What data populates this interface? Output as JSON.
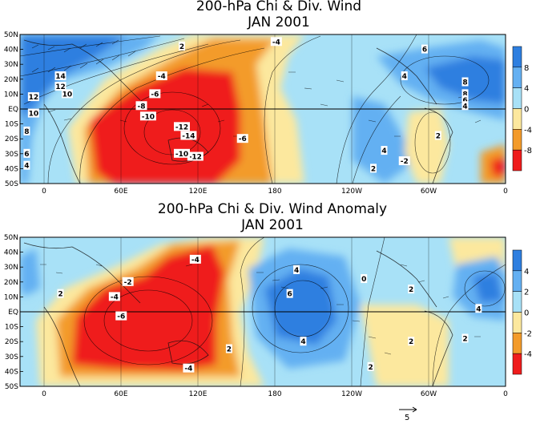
{
  "chart_data": [
    {
      "type": "heatmap",
      "title": "200-hPa Chi & Div. Wind",
      "subtitle": "JAN 2001",
      "xlim": [
        0,
        360
      ],
      "ylim": [
        -50,
        50
      ],
      "xticks": [
        "0",
        "60E",
        "120E",
        "180",
        "120W",
        "60W",
        "0"
      ],
      "yticks": [
        "50N",
        "40N",
        "30N",
        "20N",
        "10N",
        "EQ",
        "10S",
        "20S",
        "30S",
        "40S",
        "50S"
      ],
      "colorbar": {
        "ticks": [
          "8",
          "4",
          "0",
          "-4",
          "-8"
        ],
        "colors": [
          "#2e7fe0",
          "#64b0f2",
          "#a8e1f7",
          "#fce89e",
          "#f39b2a",
          "#ef1c1c"
        ]
      },
      "contour_labels": [
        "10",
        "12",
        "14",
        "12",
        "10",
        "8",
        "6",
        "4",
        "2",
        "-4",
        "-6",
        "-8",
        "-10",
        "-12",
        "-14",
        "-12",
        "-10",
        "-6",
        "-4",
        "6",
        "4",
        "8",
        "8",
        "6",
        "4",
        "2",
        "-2",
        "4",
        "2"
      ],
      "centers": [
        {
          "lon": 120,
          "lat": -15,
          "value": -14
        },
        {
          "lon": 110,
          "lat": 5,
          "value": -8
        },
        {
          "lon": 150,
          "lat": 10,
          "value": -6
        },
        {
          "lon": 150,
          "lat": -25,
          "value": -6
        },
        {
          "lon": 15,
          "lat": 25,
          "value": 14
        },
        {
          "lon": 320,
          "lat": 20,
          "value": 8
        },
        {
          "lon": 250,
          "lat": -5,
          "value": 4
        },
        {
          "lon": 315,
          "lat": -20,
          "value": -2
        }
      ]
    },
    {
      "type": "heatmap",
      "title": "200-hPa Chi & Div. Wind Anomaly",
      "subtitle": "JAN 2001",
      "xlim": [
        0,
        360
      ],
      "ylim": [
        -50,
        50
      ],
      "xticks": [
        "0",
        "60E",
        "120E",
        "180",
        "120W",
        "60W",
        "0"
      ],
      "yticks": [
        "50N",
        "40N",
        "30N",
        "20N",
        "10N",
        "EQ",
        "10S",
        "20S",
        "30S",
        "40S",
        "50S"
      ],
      "colorbar": {
        "ticks": [
          "4",
          "2",
          "0",
          "-2",
          "-4"
        ],
        "colors": [
          "#2e7fe0",
          "#64b0f2",
          "#a8e1f7",
          "#fce89e",
          "#f39b2a",
          "#ef1c1c"
        ]
      },
      "contour_labels": [
        "-4",
        "-2",
        "-4",
        "-6",
        "-4",
        "2",
        "6",
        "4",
        "4",
        "2",
        "2",
        "2",
        "0",
        "2",
        "4",
        "2"
      ],
      "centers": [
        {
          "lon": 70,
          "lat": -5,
          "value": -6
        },
        {
          "lon": 125,
          "lat": 35,
          "value": -4
        },
        {
          "lon": 110,
          "lat": -35,
          "value": -4
        },
        {
          "lon": 200,
          "lat": 5,
          "value": 6
        },
        {
          "lon": 340,
          "lat": 20,
          "value": 4
        },
        {
          "lon": 260,
          "lat": -15,
          "value": -2
        }
      ]
    }
  ],
  "reference_vector_label": "5"
}
